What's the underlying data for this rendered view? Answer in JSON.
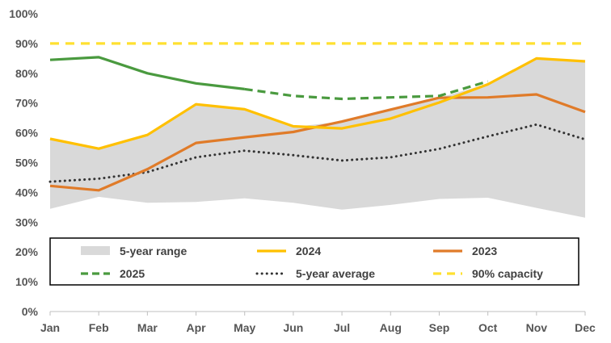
{
  "chart_data": {
    "type": "line",
    "title": "",
    "xlabel": "",
    "ylabel": "",
    "categories": [
      "Jan",
      "Feb",
      "Mar",
      "Apr",
      "May",
      "Jun",
      "Jul",
      "Aug",
      "Sep",
      "Oct",
      "Nov",
      "Dec"
    ],
    "ylim": [
      0,
      100
    ],
    "y_ticks": [
      0,
      10,
      20,
      30,
      40,
      50,
      60,
      70,
      80,
      90,
      100
    ],
    "y_tick_labels": [
      "0%",
      "10%",
      "20%",
      "30%",
      "40%",
      "50%",
      "60%",
      "70%",
      "80%",
      "90%",
      "100%"
    ],
    "range": {
      "name": "5-year range",
      "color": "#d9d9d9",
      "min": [
        34.5,
        38.5,
        36.5,
        36.8,
        38.0,
        36.5,
        34.2,
        35.8,
        37.8,
        38.2,
        34.8,
        31.5
      ],
      "max": [
        58.0,
        55.0,
        59.5,
        69.5,
        68.0,
        62.0,
        63.8,
        67.8,
        71.8,
        76.5,
        85.0,
        84.0
      ]
    },
    "series": [
      {
        "name": "2024",
        "color": "#ffc000",
        "style": "solid",
        "values": [
          58.0,
          54.7,
          59.3,
          69.6,
          67.9,
          62.2,
          61.5,
          64.8,
          70.2,
          76.3,
          85.0,
          84.0
        ]
      },
      {
        "name": "2023",
        "color": "#e07b29",
        "style": "solid",
        "values": [
          42.2,
          40.7,
          47.8,
          56.6,
          58.5,
          60.3,
          63.8,
          67.8,
          71.8,
          71.9,
          72.9,
          67.0
        ]
      },
      {
        "name": "2025",
        "color": "#4a9a3f",
        "style": "solid-then-dashed",
        "solid_until": "May",
        "values": [
          84.5,
          85.4,
          80.0,
          76.6,
          74.7,
          72.4,
          71.4,
          71.9,
          72.4,
          77.3,
          null,
          null
        ]
      },
      {
        "name": "5-year average",
        "color": "#333333",
        "style": "dotted",
        "values": [
          43.6,
          44.6,
          46.8,
          51.8,
          54.0,
          52.5,
          50.7,
          51.8,
          54.6,
          58.8,
          62.8,
          57.8
        ]
      },
      {
        "name": "90% capacity",
        "color": "#ffe030",
        "style": "dashed",
        "values": [
          90,
          90,
          90,
          90,
          90,
          90,
          90,
          90,
          90,
          90,
          90,
          90
        ]
      }
    ],
    "legend": {
      "placement": "inside-bottom",
      "entries": [
        "5-year range",
        "2024",
        "2023",
        "2025",
        "5-year average",
        "90% capacity"
      ]
    }
  }
}
